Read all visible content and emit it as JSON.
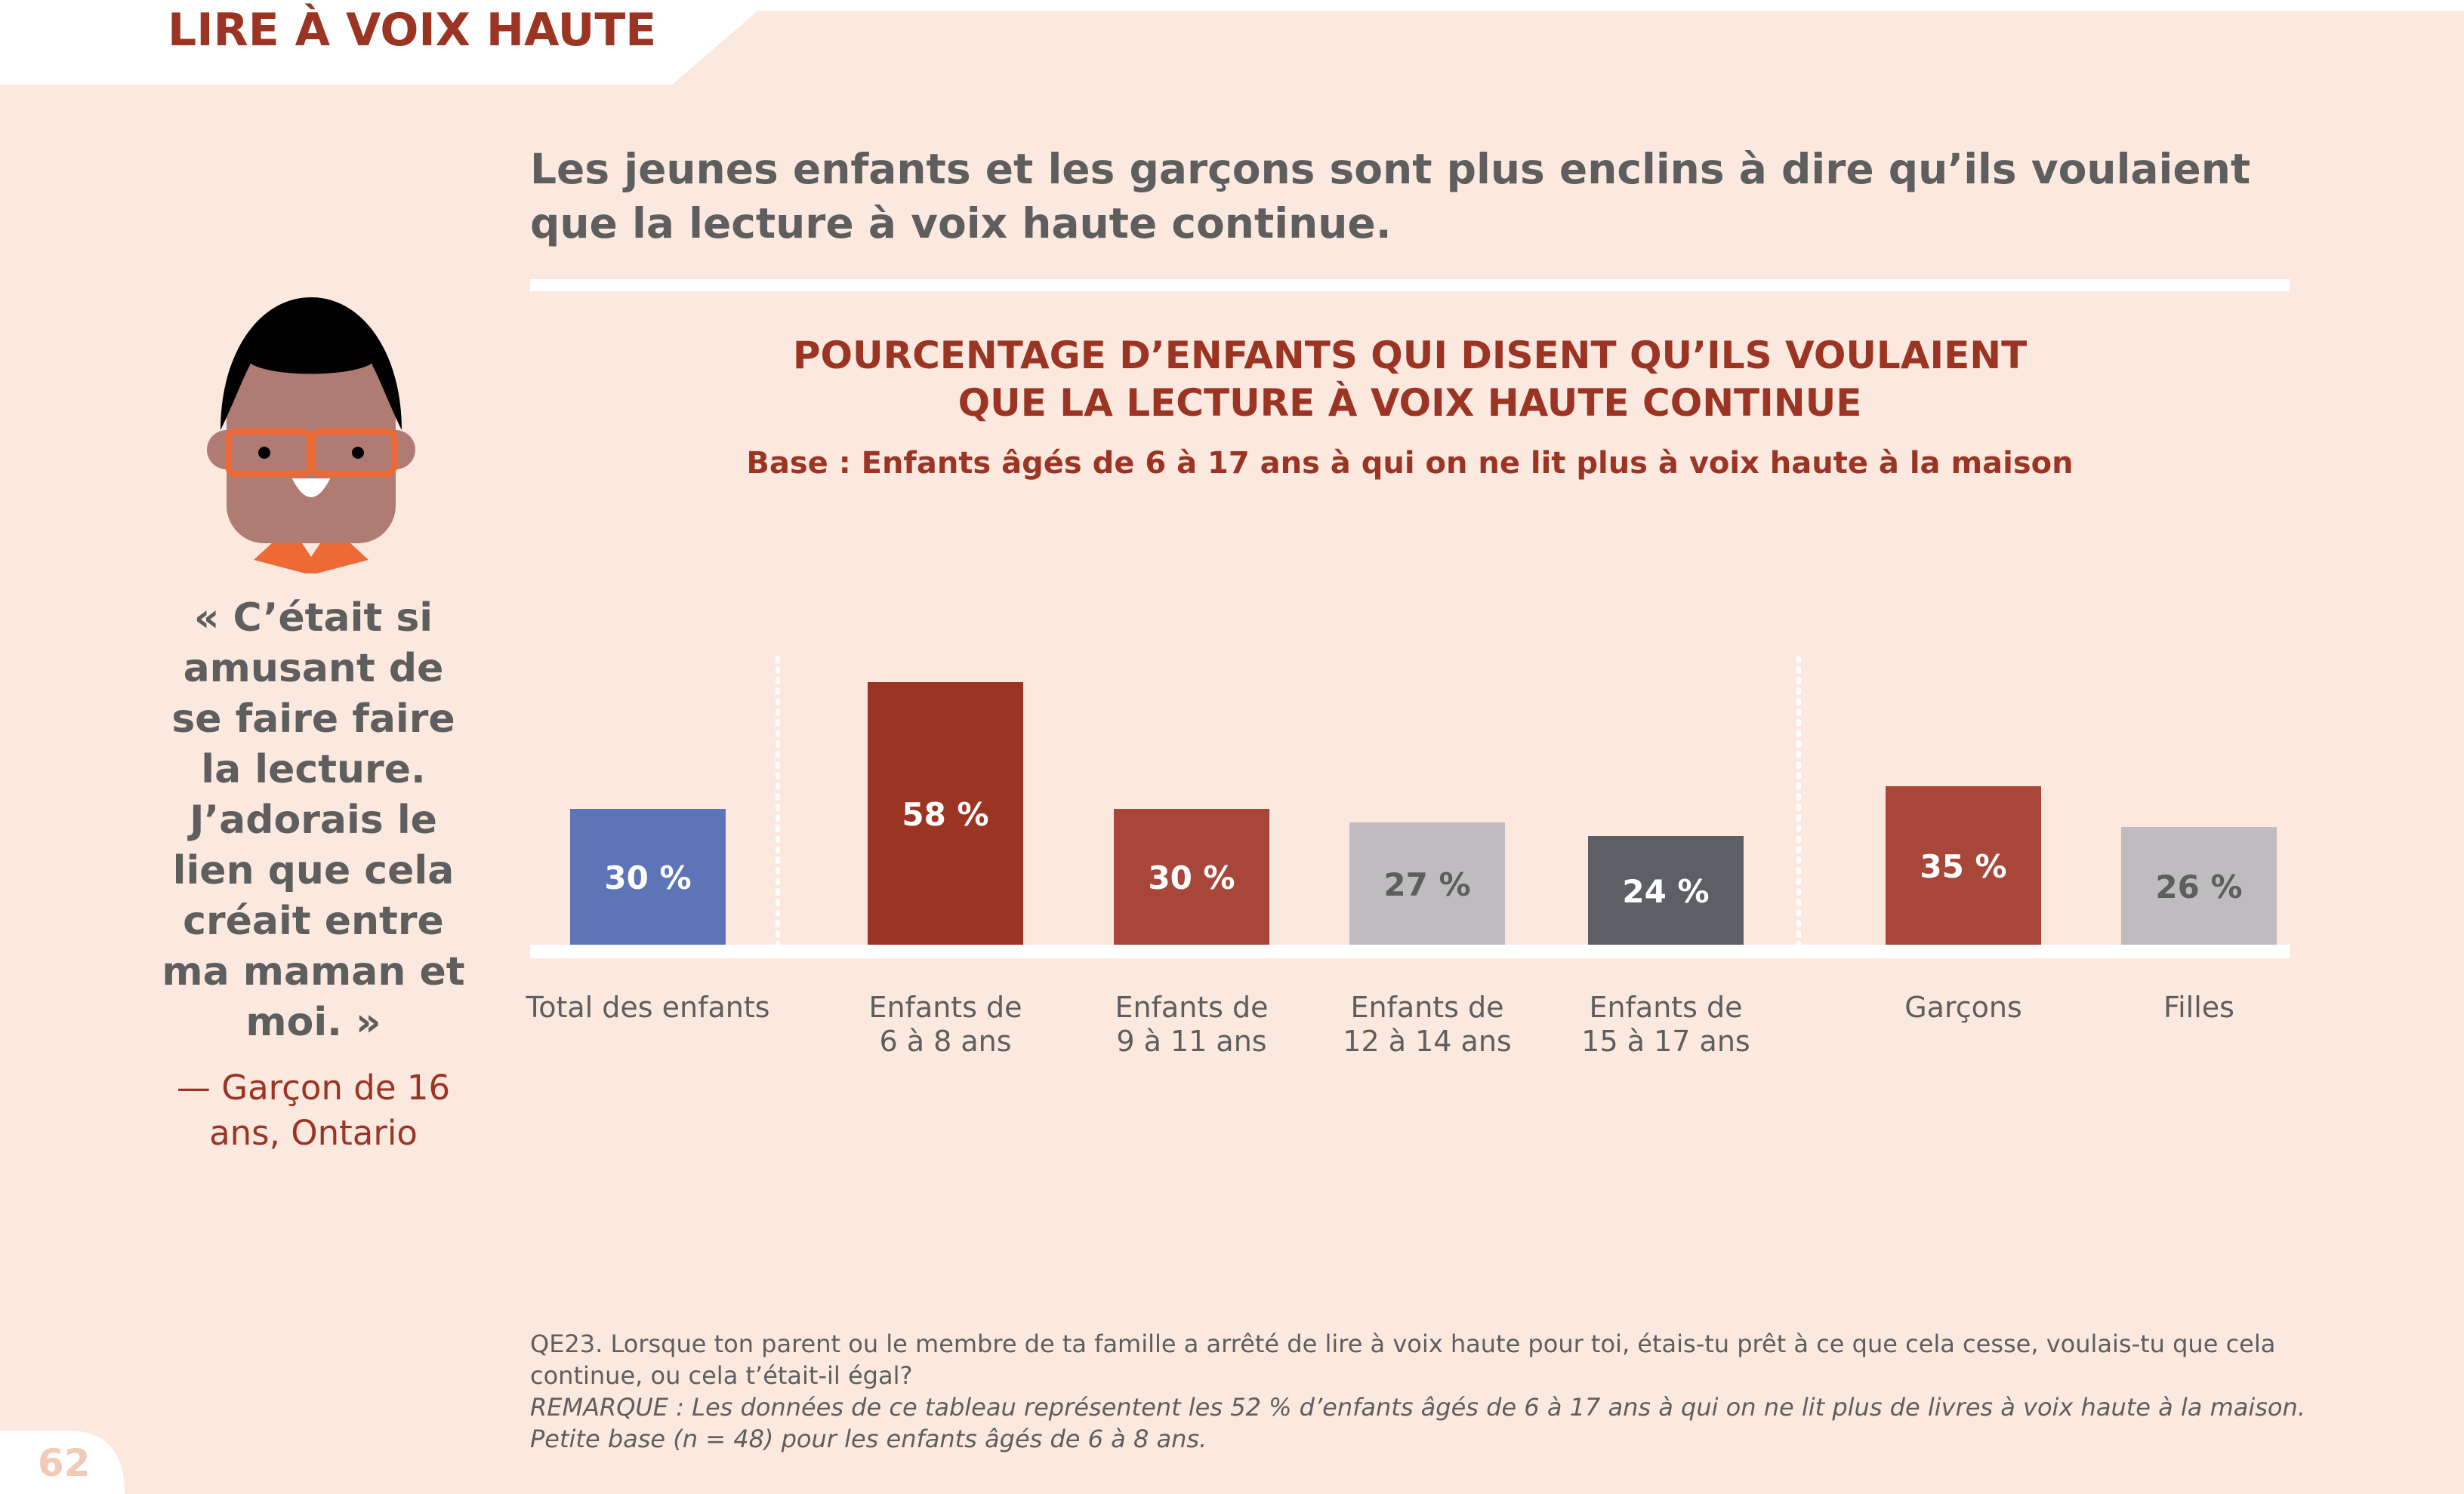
{
  "section_title": "LIRE À VOIX HAUTE",
  "headline": "Les jeunes enfants et les garçons sont plus enclins à dire qu’ils voulaient que la lecture à voix haute continue.",
  "quote": {
    "text": "« C’était si amusant de se faire faire la lecture. J’adorais le lien que cela créait entre ma maman et moi. »",
    "attribution": "— Garçon de 16 ans, Ontario"
  },
  "colors": {
    "background": "#fbe9e0",
    "accent": "#9b3423",
    "text_gray": "#5e5e5e"
  },
  "chart_data": {
    "type": "bar",
    "title_lines": [
      "POURCENTAGE D’ENFANTS QUI DISENT QU’ILS VOULAIENT",
      "QUE LA LECTURE À VOIX HAUTE CONTINUE"
    ],
    "subtitle": "Base : Enfants âgés de 6 à 17 ans à qui on ne lit plus à voix haute à la maison",
    "unit": "%",
    "ylim": [
      0,
      100
    ],
    "categories": [
      [
        "Total des enfants"
      ],
      [
        "Enfants de",
        "6 à 8 ans"
      ],
      [
        "Enfants de",
        "9 à 11 ans"
      ],
      [
        "Enfants de",
        "12 à 14 ans"
      ],
      [
        "Enfants de",
        "15 à 17 ans"
      ],
      [
        "Garçons"
      ],
      [
        "Filles"
      ]
    ],
    "values": [
      30,
      58,
      30,
      27,
      24,
      35,
      26
    ],
    "value_labels": [
      "30 %",
      "58 %",
      "30 %",
      "27 %",
      "24 %",
      "35 %",
      "26 %"
    ],
    "bar_colors": [
      "#5d75b6",
      "#9b3423",
      "#a8463a",
      "#bfbcbf",
      "#5c6064",
      "#a8463a",
      "#bfbcbf"
    ],
    "label_colors": [
      "#ffffff",
      "#ffffff",
      "#ffffff",
      "#5e5e5e",
      "#ffffff",
      "#ffffff",
      "#5e5e5e"
    ],
    "groups": [
      [
        "Total des enfants"
      ],
      [
        "Enfants de 6 à 8 ans",
        "Enfants de 9 à 11 ans",
        "Enfants de 12 à 14 ans",
        "Enfants de 15 à 17 ans"
      ],
      [
        "Garçons",
        "Filles"
      ]
    ],
    "grid": false,
    "legend": "none"
  },
  "footnote": {
    "question": "QE23. Lorsque ton parent ou le membre de ta famille a arrêté de lire à voix haute pour toi, étais-tu prêt à ce que cela cesse, voulais-tu que cela continue, ou cela t’était-il égal?",
    "remark": "REMARQUE : Les données de ce tableau représentent les 52 % d’enfants âgés de 6 à 17 ans à qui on ne lit plus de livres à voix haute à la maison. Petite base (n = 48) pour les enfants âgés de 6 à 8 ans."
  },
  "page_number": "62"
}
